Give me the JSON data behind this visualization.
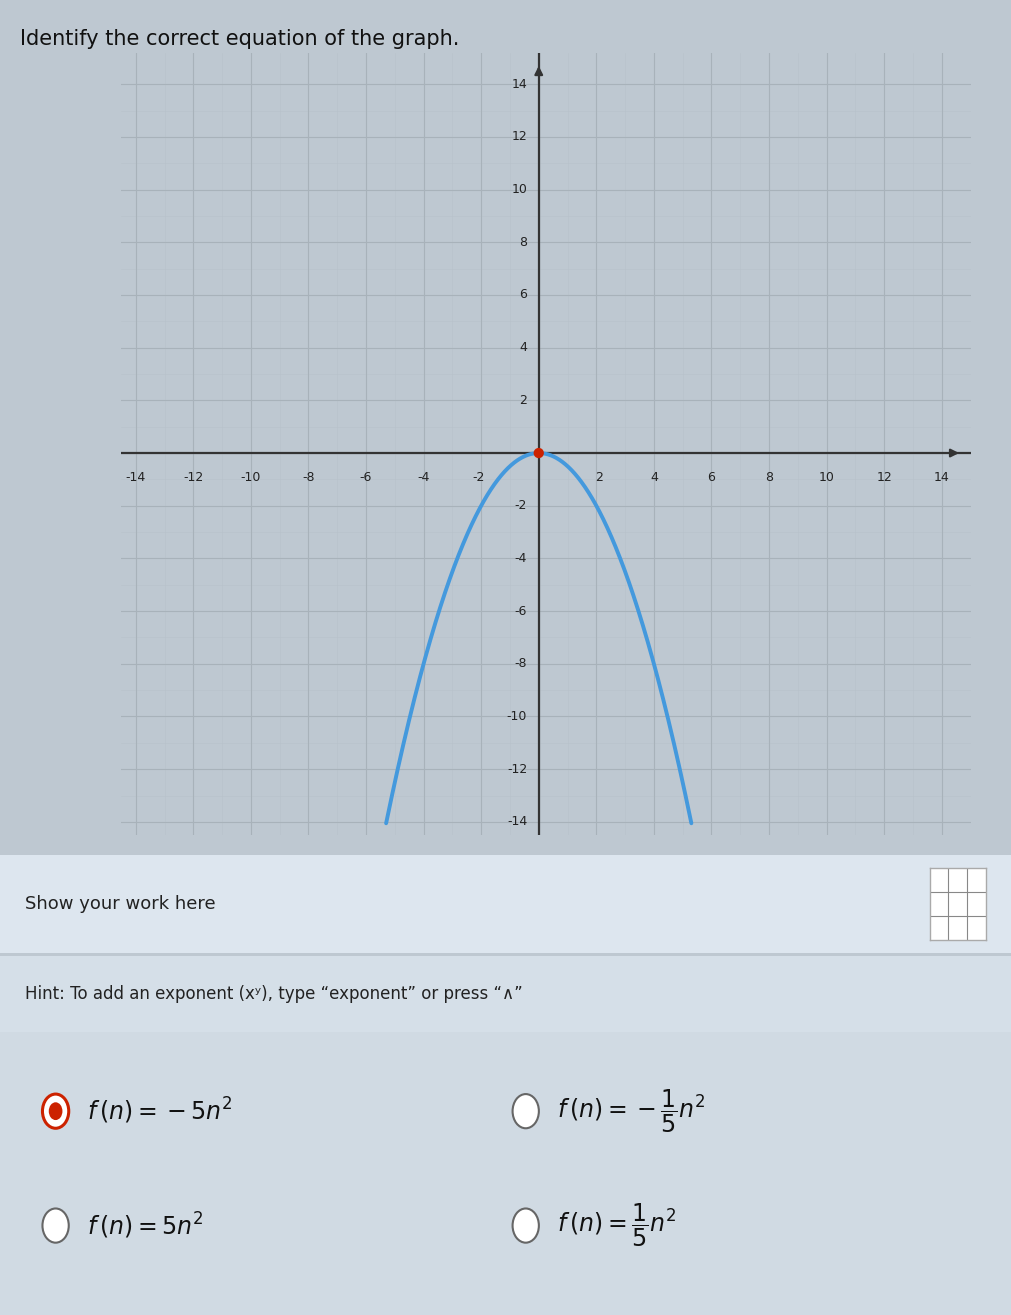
{
  "title": "Identify the correct equation of the graph.",
  "title_fontsize": 15,
  "graph_bg_color": "#cdd5dc",
  "page_bg_color": "#bec8d1",
  "lower_bg_color": "#d8e0e8",
  "xlim": [
    -14,
    14
  ],
  "ylim": [
    -14,
    14
  ],
  "xticks": [
    -14,
    -12,
    -10,
    -8,
    -6,
    -4,
    -2,
    2,
    4,
    6,
    8,
    10,
    12,
    14
  ],
  "yticks": [
    -14,
    -12,
    -10,
    -8,
    -6,
    -4,
    -2,
    2,
    4,
    6,
    8,
    10,
    12,
    14
  ],
  "grid_minor_color": "#b8c2ca",
  "grid_major_color": "#a8b2ba",
  "axis_color": "#333333",
  "curve_color": "#4499dd",
  "curve_lw": 2.8,
  "curve_coeff": -0.5,
  "vertex_color": "#cc2200",
  "vertex_x": 0,
  "vertex_y": 0,
  "vertex_size": 55,
  "show_work_label": "Show your work here",
  "hint_text": "Hint: To add an exponent (xʸ), type “exponent” or press “∧”",
  "work_box_color": "#dde6ef",
  "hint_box_color": "#d5dfe8",
  "options_bg_color": "#d0dae3",
  "tick_fontsize": 9,
  "label_fontsize": 14,
  "option_fontsize": 17
}
